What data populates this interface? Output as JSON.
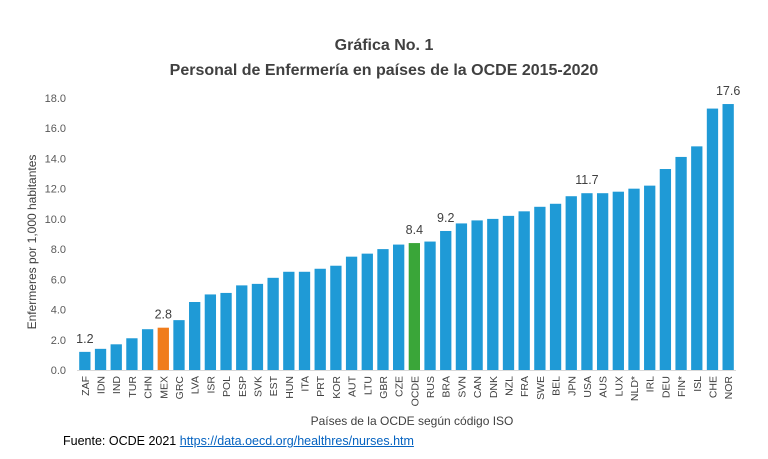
{
  "source": {
    "label": "Fuente: OCDE 2021",
    "link_text": "https://data.oecd.org/healthres/nurses.htm"
  },
  "colors": {
    "default_bar": "#1f9ad6",
    "highlight_mex": "#f07c1c",
    "highlight_ocde": "#3aa639"
  },
  "chart_data": {
    "type": "bar",
    "title": "Gráfica No. 1",
    "subtitle": "Personal de Enfermería en países de la OCDE 2015-2020",
    "xlabel": "Países de la OCDE según código ISO",
    "ylabel": "Enfermeres por 1,000 habitantes",
    "ylim": [
      0,
      18
    ],
    "yticks": [
      "0.0",
      "2.0",
      "4.0",
      "6.0",
      "8.0",
      "10.0",
      "12.0",
      "14.0",
      "16.0",
      "18.0"
    ],
    "grid": false,
    "categories": [
      "ZAF",
      "IDN",
      "IND",
      "TUR",
      "CHN",
      "MEX",
      "GRC",
      "LVA",
      "ISR",
      "POL",
      "ESP",
      "SVK",
      "EST",
      "HUN",
      "ITA",
      "PRT",
      "KOR",
      "AUT",
      "LTU",
      "GBR",
      "CZE",
      "OCDE",
      "RUS",
      "BRA",
      "SVN",
      "CAN",
      "DNK",
      "NZL",
      "FRA",
      "SWE",
      "BEL",
      "JPN",
      "USA",
      "AUS",
      "LUX",
      "NLD*",
      "IRL",
      "DEU",
      "FIN*",
      "ISL",
      "CHE",
      "NOR"
    ],
    "values": [
      1.2,
      1.4,
      1.7,
      2.1,
      2.7,
      2.8,
      3.3,
      4.5,
      5.0,
      5.1,
      5.6,
      5.7,
      6.1,
      6.5,
      6.5,
      6.7,
      6.9,
      7.5,
      7.7,
      8.0,
      8.3,
      8.4,
      8.5,
      9.2,
      9.7,
      9.9,
      10.0,
      10.2,
      10.5,
      10.8,
      11.0,
      11.5,
      11.7,
      11.7,
      11.8,
      12.0,
      12.2,
      13.3,
      14.1,
      14.8,
      17.3,
      17.6
    ],
    "highlight": {
      "MEX": "orange",
      "OCDE": "green"
    },
    "data_labels": [
      {
        "category": "ZAF",
        "text": "1.2"
      },
      {
        "category": "MEX",
        "text": "2.8"
      },
      {
        "category": "OCDE",
        "text": "8.4"
      },
      {
        "category": "BRA",
        "text": "9.2"
      },
      {
        "category": "USA",
        "text": "11.7"
      },
      {
        "category": "NOR",
        "text": "17.6"
      }
    ]
  }
}
